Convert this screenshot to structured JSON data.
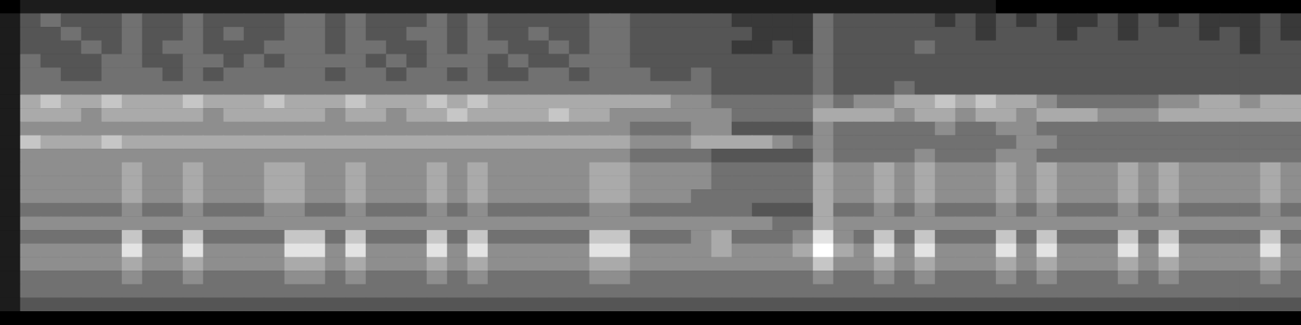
{
  "chart_data": {
    "type": "heatmap",
    "tick_labels": false,
    "grid": false,
    "color": "gray",
    "clim": [
      0,
      9
    ],
    "cells": [
      [
        0,
        1,
        1,
        1,
        1,
        1,
        1,
        1,
        1,
        1,
        1,
        1,
        1,
        1,
        1,
        1,
        1,
        1,
        1,
        1,
        1,
        1,
        1,
        1,
        1,
        1,
        1,
        1,
        1,
        1,
        1,
        1,
        1,
        1,
        1,
        1,
        1,
        1,
        1,
        1,
        1,
        1,
        1,
        1,
        1,
        1,
        1,
        1,
        1,
        0,
        0,
        0,
        0,
        0,
        0,
        0,
        0,
        0,
        0,
        0,
        0,
        0,
        0,
        0
      ],
      [
        1,
        3,
        4,
        3,
        3,
        3,
        4,
        3,
        3,
        4,
        3,
        3,
        3,
        3,
        4,
        4,
        3,
        4,
        3,
        3,
        3,
        4,
        3,
        4,
        3,
        3,
        3,
        3,
        3,
        4,
        4,
        3,
        3,
        3,
        3,
        3,
        2,
        2,
        2,
        2,
        4,
        3,
        3,
        3,
        3,
        3,
        2,
        3,
        2,
        3,
        2,
        3,
        2,
        2,
        3,
        2,
        3,
        2,
        3,
        2,
        2,
        2,
        3,
        2
      ],
      [
        1,
        3,
        3,
        4,
        3,
        3,
        4,
        3,
        3,
        4,
        3,
        4,
        3,
        3,
        4,
        4,
        3,
        4,
        3,
        3,
        4,
        4,
        3,
        4,
        3,
        3,
        4,
        3,
        3,
        4,
        4,
        3,
        3,
        3,
        3,
        3,
        3,
        2,
        2,
        2,
        4,
        3,
        3,
        3,
        3,
        3,
        3,
        3,
        2,
        3,
        3,
        3,
        2,
        3,
        3,
        2,
        3,
        3,
        3,
        2,
        3,
        2,
        3,
        2
      ],
      [
        1,
        3,
        3,
        3,
        4,
        3,
        4,
        3,
        4,
        4,
        3,
        3,
        3,
        4,
        4,
        4,
        3,
        4,
        4,
        3,
        3,
        4,
        3,
        4,
        4,
        3,
        3,
        4,
        3,
        4,
        4,
        3,
        3,
        3,
        3,
        3,
        2,
        2,
        3,
        2,
        4,
        3,
        3,
        3,
        3,
        4,
        3,
        3,
        3,
        3,
        3,
        3,
        3,
        3,
        3,
        3,
        3,
        3,
        3,
        3,
        3,
        2,
        3,
        3
      ],
      [
        1,
        4,
        3,
        3,
        3,
        4,
        4,
        3,
        3,
        4,
        4,
        3,
        4,
        3,
        4,
        4,
        4,
        4,
        3,
        4,
        3,
        4,
        4,
        4,
        3,
        4,
        3,
        3,
        4,
        4,
        4,
        3,
        3,
        3,
        3,
        3,
        3,
        3,
        3,
        3,
        4,
        3,
        3,
        3,
        3,
        3,
        3,
        3,
        3,
        3,
        3,
        3,
        3,
        3,
        3,
        3,
        3,
        3,
        3,
        3,
        3,
        3,
        3,
        3
      ],
      [
        1,
        4,
        4,
        3,
        3,
        4,
        4,
        4,
        3,
        4,
        3,
        4,
        4,
        4,
        4,
        4,
        3,
        4,
        4,
        3,
        4,
        4,
        3,
        4,
        3,
        3,
        4,
        4,
        3,
        4,
        4,
        4,
        3,
        3,
        4,
        3,
        3,
        3,
        3,
        3,
        4,
        3,
        3,
        3,
        3,
        3,
        3,
        3,
        3,
        3,
        3,
        3,
        3,
        3,
        3,
        3,
        3,
        3,
        3,
        3,
        3,
        3,
        3,
        3
      ],
      [
        1,
        4,
        4,
        4,
        4,
        4,
        4,
        4,
        4,
        4,
        4,
        4,
        4,
        4,
        4,
        4,
        4,
        4,
        4,
        4,
        4,
        4,
        4,
        4,
        4,
        4,
        4,
        4,
        4,
        4,
        4,
        4,
        4,
        4,
        4,
        3,
        3,
        3,
        3,
        3,
        4,
        3,
        3,
        3,
        4,
        3,
        3,
        3,
        3,
        3,
        3,
        3,
        3,
        3,
        3,
        3,
        3,
        3,
        3,
        3,
        3,
        3,
        3,
        3
      ],
      [
        1,
        6,
        7,
        6,
        6,
        7,
        6,
        6,
        6,
        7,
        6,
        6,
        6,
        7,
        6,
        6,
        6,
        7,
        6,
        6,
        6,
        7,
        6,
        7,
        6,
        6,
        6,
        6,
        6,
        6,
        6,
        6,
        6,
        5,
        5,
        4,
        4,
        4,
        4,
        4,
        5,
        4,
        5,
        5,
        6,
        6,
        7,
        6,
        7,
        6,
        6,
        5,
        4,
        4,
        4,
        4,
        4,
        5,
        5,
        6,
        6,
        5,
        6,
        6
      ],
      [
        1,
        6,
        6,
        6,
        5,
        6,
        6,
        6,
        6,
        6,
        5,
        6,
        6,
        6,
        6,
        6,
        5,
        6,
        6,
        5,
        6,
        6,
        7,
        6,
        6,
        6,
        6,
        7,
        6,
        6,
        5,
        5,
        5,
        5,
        5,
        5,
        4,
        4,
        4,
        4,
        6,
        6,
        6,
        6,
        5,
        6,
        6,
        5,
        6,
        6,
        5,
        6,
        6,
        6,
        5,
        5,
        5,
        6,
        6,
        6,
        6,
        6,
        6,
        6
      ],
      [
        1,
        5,
        5,
        5,
        5,
        5,
        5,
        5,
        5,
        5,
        5,
        5,
        5,
        5,
        5,
        5,
        5,
        5,
        5,
        5,
        5,
        5,
        5,
        5,
        5,
        5,
        5,
        5,
        5,
        5,
        5,
        4,
        4,
        4,
        5,
        5,
        3,
        3,
        3,
        3,
        5,
        4,
        4,
        4,
        4,
        4,
        5,
        4,
        4,
        5,
        5,
        4,
        4,
        4,
        4,
        4,
        4,
        4,
        4,
        4,
        4,
        4,
        4,
        4
      ],
      [
        1,
        7,
        6,
        6,
        6,
        7,
        6,
        6,
        6,
        6,
        6,
        6,
        6,
        6,
        6,
        6,
        6,
        6,
        6,
        6,
        6,
        6,
        6,
        6,
        6,
        6,
        6,
        6,
        6,
        6,
        6,
        5,
        5,
        5,
        6,
        6,
        6,
        6,
        5,
        4,
        5,
        4,
        4,
        4,
        4,
        4,
        4,
        4,
        4,
        4,
        5,
        5,
        4,
        4,
        4,
        4,
        4,
        4,
        4,
        4,
        4,
        4,
        4,
        4
      ],
      [
        1,
        5,
        5,
        5,
        5,
        5,
        5,
        5,
        5,
        5,
        5,
        5,
        5,
        5,
        5,
        5,
        5,
        5,
        5,
        5,
        5,
        5,
        5,
        5,
        5,
        5,
        5,
        5,
        5,
        5,
        5,
        4,
        4,
        4,
        4,
        3,
        3,
        3,
        3,
        3,
        5,
        4,
        4,
        4,
        4,
        5,
        4,
        4,
        4,
        5,
        5,
        4,
        4,
        4,
        4,
        4,
        4,
        4,
        4,
        4,
        4,
        4,
        4,
        4
      ],
      [
        1,
        5,
        5,
        5,
        5,
        5,
        6,
        5,
        5,
        6,
        5,
        5,
        5,
        6,
        6,
        5,
        5,
        6,
        5,
        5,
        5,
        6,
        5,
        6,
        5,
        5,
        5,
        5,
        5,
        6,
        6,
        5,
        5,
        5,
        5,
        4,
        4,
        4,
        4,
        4,
        6,
        5,
        5,
        6,
        5,
        6,
        5,
        5,
        5,
        6,
        5,
        6,
        5,
        5,
        5,
        6,
        5,
        6,
        5,
        5,
        5,
        5,
        6,
        5
      ],
      [
        1,
        5,
        5,
        5,
        5,
        5,
        6,
        5,
        5,
        6,
        5,
        5,
        5,
        6,
        6,
        5,
        5,
        6,
        5,
        5,
        5,
        6,
        5,
        6,
        5,
        5,
        5,
        5,
        5,
        6,
        6,
        5,
        5,
        5,
        5,
        4,
        4,
        4,
        4,
        4,
        6,
        5,
        5,
        6,
        5,
        6,
        5,
        5,
        5,
        6,
        5,
        6,
        5,
        5,
        5,
        6,
        5,
        6,
        5,
        5,
        5,
        5,
        6,
        5
      ],
      [
        1,
        5,
        5,
        5,
        5,
        5,
        6,
        5,
        5,
        6,
        5,
        5,
        5,
        6,
        6,
        5,
        5,
        6,
        5,
        5,
        5,
        6,
        5,
        6,
        5,
        5,
        5,
        5,
        5,
        6,
        6,
        5,
        5,
        5,
        4,
        4,
        4,
        4,
        4,
        4,
        6,
        5,
        5,
        6,
        5,
        6,
        5,
        5,
        5,
        6,
        5,
        6,
        5,
        5,
        5,
        6,
        5,
        6,
        5,
        5,
        5,
        5,
        6,
        5
      ],
      [
        1,
        4,
        4,
        4,
        4,
        4,
        5,
        4,
        4,
        5,
        4,
        4,
        4,
        5,
        5,
        4,
        4,
        5,
        4,
        4,
        4,
        5,
        4,
        5,
        4,
        4,
        4,
        4,
        4,
        5,
        5,
        4,
        4,
        4,
        4,
        4,
        4,
        3,
        3,
        3,
        6,
        4,
        4,
        5,
        4,
        5,
        4,
        4,
        4,
        5,
        4,
        5,
        4,
        4,
        4,
        5,
        4,
        5,
        4,
        4,
        4,
        4,
        5,
        4
      ],
      [
        1,
        5,
        5,
        5,
        5,
        5,
        5,
        5,
        5,
        5,
        5,
        5,
        5,
        5,
        5,
        5,
        5,
        5,
        5,
        5,
        5,
        5,
        5,
        5,
        5,
        5,
        5,
        5,
        5,
        5,
        5,
        5,
        5,
        5,
        5,
        5,
        5,
        5,
        4,
        4,
        6,
        5,
        5,
        5,
        5,
        5,
        5,
        5,
        5,
        5,
        5,
        5,
        5,
        5,
        5,
        5,
        5,
        5,
        5,
        5,
        5,
        5,
        5,
        5
      ],
      [
        1,
        4,
        4,
        4,
        4,
        4,
        7,
        4,
        4,
        7,
        4,
        4,
        4,
        4,
        7,
        7,
        4,
        7,
        4,
        4,
        4,
        7,
        4,
        7,
        4,
        4,
        4,
        4,
        4,
        7,
        7,
        4,
        4,
        4,
        5,
        6,
        4,
        4,
        4,
        5,
        8,
        5,
        4,
        7,
        4,
        7,
        4,
        4,
        4,
        7,
        4,
        7,
        4,
        4,
        4,
        7,
        4,
        7,
        4,
        4,
        4,
        4,
        7,
        4
      ],
      [
        1,
        5,
        5,
        5,
        5,
        5,
        8,
        5,
        5,
        8,
        5,
        5,
        5,
        5,
        8,
        8,
        5,
        8,
        5,
        5,
        5,
        8,
        5,
        8,
        5,
        5,
        5,
        5,
        5,
        8,
        8,
        5,
        5,
        5,
        5,
        6,
        5,
        5,
        5,
        6,
        9,
        6,
        5,
        8,
        5,
        8,
        5,
        5,
        5,
        8,
        5,
        8,
        5,
        5,
        5,
        8,
        5,
        8,
        5,
        5,
        5,
        5,
        8,
        5
      ],
      [
        1,
        5,
        5,
        5,
        5,
        5,
        6,
        5,
        5,
        6,
        5,
        5,
        5,
        5,
        6,
        6,
        5,
        6,
        5,
        5,
        5,
        6,
        5,
        6,
        5,
        5,
        5,
        5,
        5,
        6,
        6,
        5,
        5,
        5,
        5,
        5,
        5,
        5,
        5,
        5,
        7,
        5,
        5,
        6,
        5,
        6,
        5,
        5,
        5,
        6,
        5,
        6,
        5,
        5,
        5,
        6,
        5,
        6,
        5,
        5,
        5,
        5,
        6,
        5
      ],
      [
        1,
        4,
        4,
        4,
        4,
        4,
        5,
        4,
        4,
        5,
        4,
        4,
        4,
        4,
        5,
        5,
        4,
        5,
        4,
        4,
        4,
        5,
        4,
        5,
        4,
        4,
        4,
        4,
        4,
        5,
        5,
        4,
        4,
        4,
        4,
        4,
        4,
        4,
        4,
        4,
        5,
        4,
        4,
        5,
        4,
        5,
        4,
        4,
        4,
        5,
        4,
        5,
        4,
        4,
        4,
        5,
        4,
        5,
        4,
        4,
        4,
        4,
        5,
        4
      ],
      [
        1,
        4,
        4,
        4,
        4,
        4,
        4,
        4,
        4,
        4,
        4,
        4,
        4,
        4,
        4,
        4,
        4,
        4,
        4,
        4,
        4,
        4,
        4,
        4,
        4,
        4,
        4,
        4,
        4,
        4,
        4,
        4,
        4,
        4,
        4,
        4,
        4,
        4,
        4,
        4,
        4,
        4,
        4,
        4,
        4,
        4,
        4,
        4,
        4,
        4,
        4,
        4,
        4,
        4,
        4,
        4,
        4,
        4,
        4,
        4,
        4,
        4,
        4,
        4
      ],
      [
        1,
        3,
        3,
        3,
        3,
        3,
        3,
        3,
        3,
        3,
        3,
        3,
        3,
        3,
        3,
        3,
        3,
        3,
        3,
        3,
        3,
        3,
        3,
        3,
        3,
        3,
        3,
        3,
        3,
        3,
        3,
        3,
        3,
        3,
        3,
        3,
        3,
        3,
        3,
        3,
        3,
        3,
        3,
        3,
        3,
        3,
        3,
        3,
        3,
        3,
        3,
        3,
        3,
        3,
        3,
        3,
        3,
        3,
        3,
        3,
        3,
        3,
        3,
        3
      ],
      [
        0,
        0,
        0,
        0,
        0,
        0,
        0,
        0,
        0,
        0,
        0,
        0,
        0,
        0,
        0,
        0,
        0,
        0,
        0,
        0,
        0,
        0,
        0,
        0,
        0,
        0,
        0,
        0,
        0,
        0,
        0,
        0,
        0,
        0,
        0,
        0,
        0,
        0,
        0,
        0,
        0,
        0,
        0,
        0,
        0,
        0,
        0,
        0,
        0,
        0,
        0,
        0,
        0,
        0,
        0,
        0,
        0,
        0,
        0,
        0,
        0,
        0,
        0,
        0
      ]
    ]
  }
}
